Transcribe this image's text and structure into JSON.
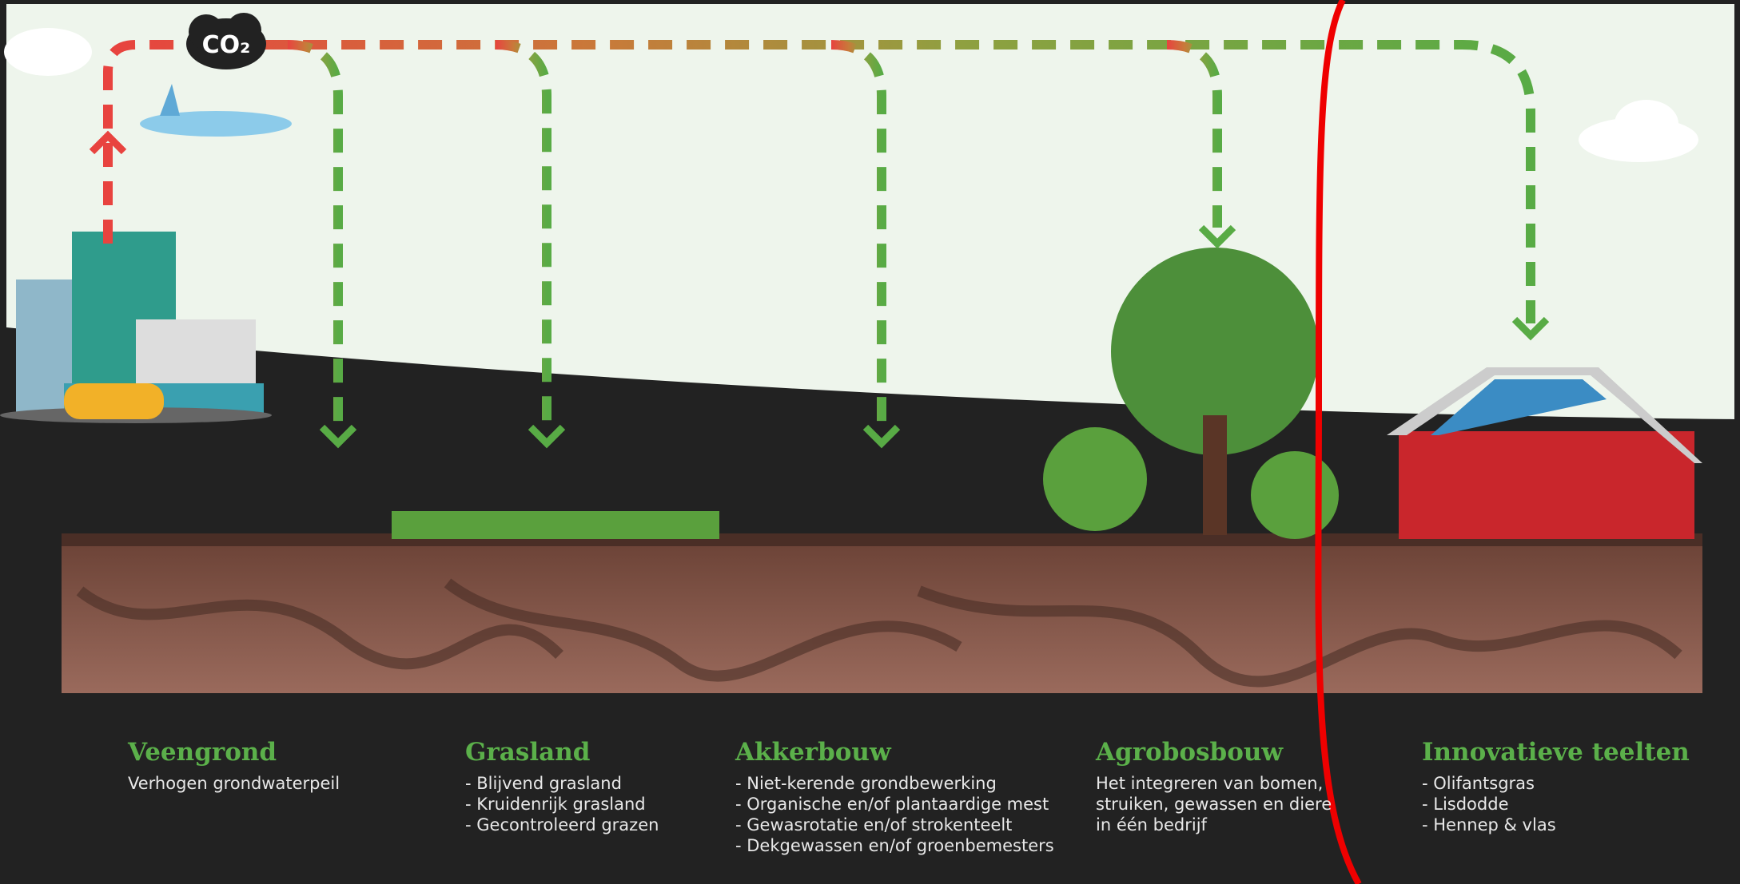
{
  "co2_label": "CO₂",
  "sections": [
    {
      "title": "Veengrond",
      "lines": [
        "Verhogen grondwaterpeil"
      ]
    },
    {
      "title": "Grasland",
      "lines": [
        "- Blijvend grasland",
        "- Kruidenrijk grasland",
        "- Gecontroleerd grazen"
      ]
    },
    {
      "title": "Akkerbouw",
      "lines": [
        "- Niet-kerende grondbewerking",
        "- Organische en/of plantaardige mest",
        "- Gewasrotatie en/of strokenteelt",
        "- Dekgewassen en/of groenbemesters"
      ]
    },
    {
      "title": "Agrobosbouw",
      "lines": [
        "Het integreren van bomen,",
        "struiken, gewassen en diere",
        "in één bedrijf"
      ]
    },
    {
      "title": "Innovatieve teelten",
      "lines": [
        "- Olifantsgras",
        "- Lisdodde",
        "- Hennep & vlas"
      ]
    }
  ]
}
